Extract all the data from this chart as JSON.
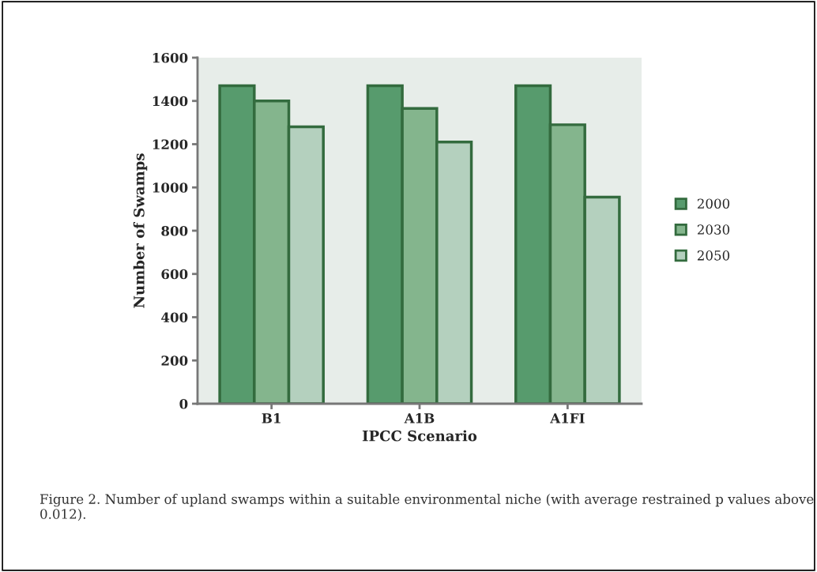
{
  "chart_data": {
    "type": "bar",
    "xlabel": "IPCC Scenario",
    "ylabel": "Number of Swamps",
    "categories": [
      "B1",
      "A1B",
      "A1FI"
    ],
    "series": [
      {
        "name": "2000",
        "color": "#579b6d",
        "values": [
          1470,
          1470,
          1470
        ]
      },
      {
        "name": "2030",
        "color": "#84b58d",
        "values": [
          1400,
          1365,
          1290
        ]
      },
      {
        "name": "2050",
        "color": "#b4d0be",
        "values": [
          1280,
          1210,
          955
        ]
      }
    ],
    "ylim": [
      0,
      1600
    ],
    "yticks": [
      0,
      200,
      400,
      600,
      800,
      1000,
      1200,
      1400,
      1600
    ],
    "grid": false,
    "legend": "right",
    "annotations": [
      "Figure 2. Number of upland swamps within a suitable environmental niche (with average restrained p values above 0.012)."
    ]
  }
}
